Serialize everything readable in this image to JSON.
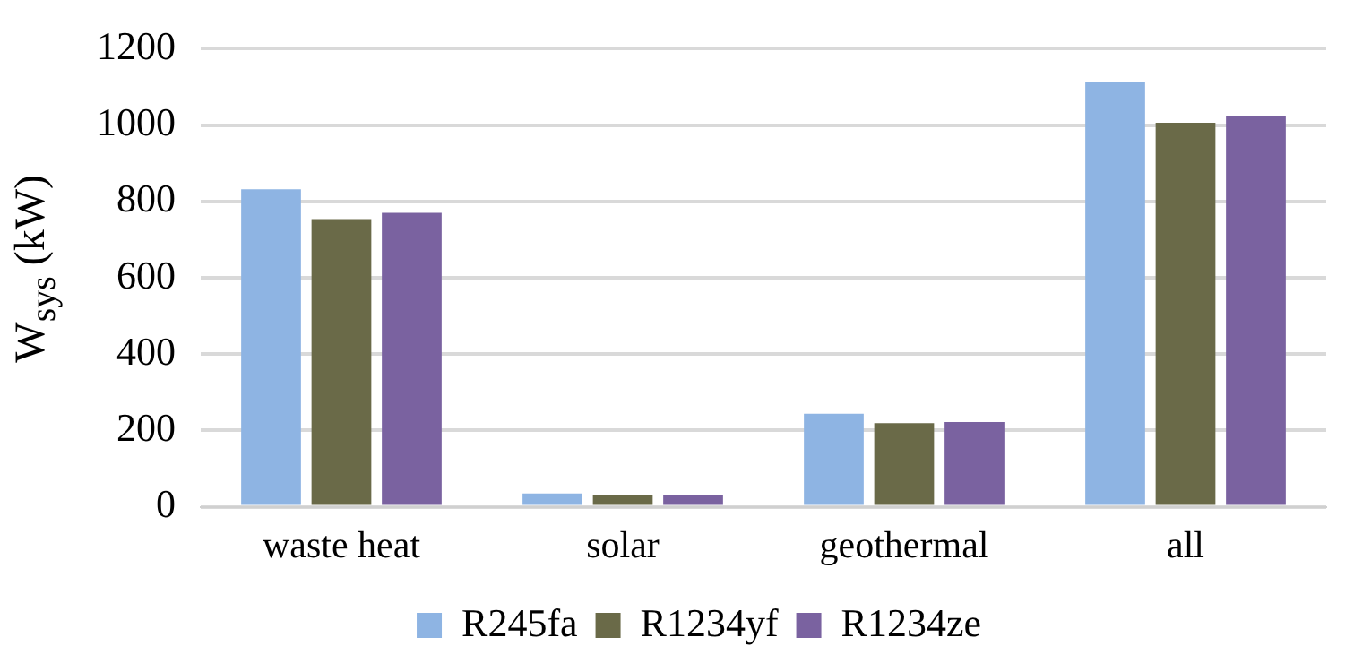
{
  "chart_data": {
    "type": "bar",
    "ylabel": "W$_{sys}$ (kW)",
    "categories": [
      "waste heat",
      "solar",
      "geothermal",
      "all"
    ],
    "series": [
      {
        "name": "R245fa",
        "color": "#8eb4e3",
        "values": [
          832,
          35,
          244,
          1113
        ]
      },
      {
        "name": "R1234yf",
        "color": "#6a6a48",
        "values": [
          754,
          32,
          219,
          1006
        ]
      },
      {
        "name": "R1234ze",
        "color": "#7a62a0",
        "values": [
          770,
          32,
          222,
          1025
        ]
      }
    ],
    "ylim": [
      0,
      1200
    ],
    "yticks": [
      0,
      200,
      400,
      600,
      800,
      1000,
      1200
    ],
    "grid": "y",
    "legend": "bottom"
  }
}
